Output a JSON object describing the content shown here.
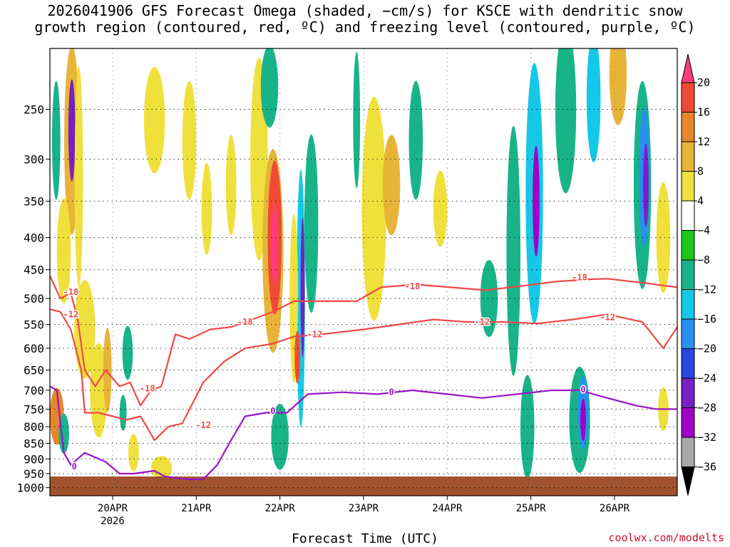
{
  "title": {
    "line1": "2026041906 GFS Forecast Omega (shaded, −cm/s) for KSCE with dendritic snow",
    "line2": "growth region (contoured, red, ºC) and freezing level (contoured, purple, ºC)"
  },
  "footer": {
    "xlabel": "Forecast Time (UTC)",
    "credit": "coolwx.com/modelts"
  },
  "chart_data": {
    "type": "heatmap",
    "xlabel": "Forecast Time (UTC)",
    "x_unit": "hours since 2026-04-19 06 UTC",
    "xlim": [
      0,
      180
    ],
    "y_unit": "pressure (hPa)",
    "ylim": [
      1030,
      200
    ],
    "y_ticks": [
      250,
      300,
      350,
      400,
      450,
      500,
      550,
      600,
      650,
      700,
      750,
      800,
      850,
      900,
      950,
      1000
    ],
    "x_ticks": [
      {
        "label": "20APR",
        "sub": "2026",
        "hour": 18
      },
      {
        "label": "21APR",
        "hour": 42
      },
      {
        "label": "22APR",
        "hour": 66
      },
      {
        "label": "23APR",
        "hour": 90
      },
      {
        "label": "24APR",
        "hour": 114
      },
      {
        "label": "25APR",
        "hour": 138
      },
      {
        "label": "26APR",
        "hour": 162
      }
    ],
    "grid": true,
    "colorbar": {
      "labels": [
        "20",
        "16",
        "12",
        "8",
        "4",
        "−4",
        "−8",
        "−12",
        "−16",
        "−20",
        "−24",
        "−28",
        "−32",
        "−36"
      ],
      "colors": [
        "#ff3c7a",
        "#f04a35",
        "#e8862a",
        "#e8b438",
        "#f0e03c",
        "#ffffff",
        "#1fc71f",
        "#18b488",
        "#14c8e8",
        "#2890f0",
        "#2846e0",
        "#7820c0",
        "#a000c8",
        "#a8a8a8",
        "#000000"
      ]
    },
    "shading_blobs": [
      {
        "x": 6.3,
        "p": 280,
        "rx": 2.2,
        "rp": 120,
        "level": 8
      },
      {
        "x": 6.3,
        "p": 270,
        "rx": 1.0,
        "rp": 50,
        "level": -24
      },
      {
        "x": 8.3,
        "p": 320,
        "rx": 1.2,
        "rp": 130,
        "level": 4
      },
      {
        "x": 1.8,
        "p": 280,
        "rx": 1.2,
        "rp": 60,
        "level": -8
      },
      {
        "x": 4.0,
        "p": 420,
        "rx": 2.0,
        "rp": 80,
        "level": 4
      },
      {
        "x": 2.0,
        "p": 770,
        "rx": 2.0,
        "rp": 80,
        "level": 12
      },
      {
        "x": 4.0,
        "p": 820,
        "rx": 1.5,
        "rp": 60,
        "level": -8
      },
      {
        "x": 10.0,
        "p": 560,
        "rx": 3.0,
        "rp": 100,
        "level": 4
      },
      {
        "x": 14.0,
        "p": 700,
        "rx": 2.5,
        "rp": 120,
        "level": 4
      },
      {
        "x": 16.5,
        "p": 650,
        "rx": 1.2,
        "rp": 100,
        "level": 8
      },
      {
        "x": 21.0,
        "p": 760,
        "rx": 1.0,
        "rp": 50,
        "level": -8
      },
      {
        "x": 22.3,
        "p": 610,
        "rx": 1.5,
        "rp": 60,
        "level": -8
      },
      {
        "x": 24.0,
        "p": 880,
        "rx": 1.5,
        "rp": 60,
        "level": 4
      },
      {
        "x": 32.0,
        "p": 930,
        "rx": 3.0,
        "rp": 40,
        "level": 4
      },
      {
        "x": 30.0,
        "p": 260,
        "rx": 3.0,
        "rp": 50,
        "level": 4
      },
      {
        "x": 40.0,
        "p": 280,
        "rx": 2.0,
        "rp": 60,
        "level": 4
      },
      {
        "x": 45.0,
        "p": 360,
        "rx": 1.5,
        "rp": 60,
        "level": 4
      },
      {
        "x": 52.0,
        "p": 330,
        "rx": 1.5,
        "rp": 60,
        "level": 4
      },
      {
        "x": 60.0,
        "p": 300,
        "rx": 2.5,
        "rp": 120,
        "level": 4
      },
      {
        "x": 64.0,
        "p": 420,
        "rx": 3.0,
        "rp": 150,
        "level": 8
      },
      {
        "x": 64.5,
        "p": 400,
        "rx": 2.0,
        "rp": 110,
        "level": 16
      },
      {
        "x": 64.5,
        "p": 410,
        "rx": 1.0,
        "rp": 60,
        "level": 20
      },
      {
        "x": 63.0,
        "p": 230,
        "rx": 2.5,
        "rp": 40,
        "level": -8
      },
      {
        "x": 72.0,
        "p": 500,
        "rx": 1.2,
        "rp": 220,
        "level": -12
      },
      {
        "x": 72.5,
        "p": 480,
        "rx": 0.6,
        "rp": 120,
        "level": -24
      },
      {
        "x": 70.0,
        "p": 500,
        "rx": 1.2,
        "rp": 150,
        "level": 4
      },
      {
        "x": 75.0,
        "p": 380,
        "rx": 2.0,
        "rp": 120,
        "level": -8
      },
      {
        "x": 66.0,
        "p": 830,
        "rx": 2.5,
        "rp": 100,
        "level": -8
      },
      {
        "x": 71.0,
        "p": 620,
        "rx": 0.8,
        "rp": 60,
        "level": 16
      },
      {
        "x": 93.0,
        "p": 360,
        "rx": 3.5,
        "rp": 140,
        "level": 4
      },
      {
        "x": 98.0,
        "p": 330,
        "rx": 2.5,
        "rp": 60,
        "level": 8
      },
      {
        "x": 88.0,
        "p": 260,
        "rx": 1.0,
        "rp": 70,
        "level": -8
      },
      {
        "x": 105.0,
        "p": 280,
        "rx": 2.0,
        "rp": 60,
        "level": -8
      },
      {
        "x": 112.0,
        "p": 360,
        "rx": 2.0,
        "rp": 50,
        "level": 4
      },
      {
        "x": 126.0,
        "p": 500,
        "rx": 2.5,
        "rp": 70,
        "level": -8
      },
      {
        "x": 133.0,
        "p": 420,
        "rx": 2.0,
        "rp": 180,
        "level": -8
      },
      {
        "x": 139.0,
        "p": 340,
        "rx": 2.5,
        "rp": 180,
        "level": -12
      },
      {
        "x": 139.5,
        "p": 350,
        "rx": 1.0,
        "rp": 70,
        "level": -28
      },
      {
        "x": 137.0,
        "p": 800,
        "rx": 2.0,
        "rp": 150,
        "level": -8
      },
      {
        "x": 152.0,
        "p": 780,
        "rx": 3.0,
        "rp": 150,
        "level": -8
      },
      {
        "x": 153.0,
        "p": 760,
        "rx": 1.5,
        "rp": 100,
        "level": -16
      },
      {
        "x": 153.0,
        "p": 780,
        "rx": 0.8,
        "rp": 60,
        "level": -28
      },
      {
        "x": 148.0,
        "p": 250,
        "rx": 3.0,
        "rp": 120,
        "level": -8
      },
      {
        "x": 156.0,
        "p": 240,
        "rx": 2.0,
        "rp": 80,
        "level": -12
      },
      {
        "x": 163.0,
        "p": 220,
        "rx": 2.5,
        "rp": 70,
        "level": 8
      },
      {
        "x": 170.0,
        "p": 330,
        "rx": 2.5,
        "rp": 120,
        "level": -8
      },
      {
        "x": 170.5,
        "p": 320,
        "rx": 1.5,
        "rp": 80,
        "level": -16
      },
      {
        "x": 171.0,
        "p": 330,
        "rx": 0.8,
        "rp": 50,
        "level": -24
      },
      {
        "x": 176.0,
        "p": 400,
        "rx": 2.0,
        "rp": 80,
        "level": 4
      },
      {
        "x": 176.0,
        "p": 750,
        "rx": 1.5,
        "rp": 60,
        "level": 4
      }
    ],
    "contours": [
      {
        "label": "-18",
        "color": "#f04848",
        "points": [
          [
            0,
            460
          ],
          [
            3,
            500
          ],
          [
            6,
            490
          ],
          [
            8,
            540
          ],
          [
            10,
            650
          ],
          [
            13,
            690
          ],
          [
            16,
            650
          ],
          [
            20,
            690
          ],
          [
            23,
            680
          ],
          [
            26,
            740
          ],
          [
            29,
            700
          ],
          [
            32,
            690
          ],
          [
            36,
            570
          ],
          [
            40,
            580
          ],
          [
            46,
            560
          ],
          [
            52,
            555
          ],
          [
            58,
            540
          ],
          [
            64,
            525
          ],
          [
            70,
            505
          ],
          [
            78,
            505
          ],
          [
            88,
            505
          ],
          [
            95,
            480
          ],
          [
            105,
            475
          ],
          [
            115,
            480
          ],
          [
            125,
            485
          ],
          [
            135,
            478
          ],
          [
            145,
            470
          ],
          [
            155,
            466
          ],
          [
            160,
            465
          ],
          [
            170,
            472
          ],
          [
            180,
            480
          ]
        ],
        "label_points": [
          [
            6,
            488
          ],
          [
            28,
            695
          ],
          [
            56,
            545
          ],
          [
            104,
            478
          ],
          [
            152,
            463
          ]
        ]
      },
      {
        "label": "-12",
        "color": "#f04848",
        "points": [
          [
            0,
            520
          ],
          [
            3,
            525
          ],
          [
            6,
            560
          ],
          [
            9,
            650
          ],
          [
            10,
            760
          ],
          [
            14,
            760
          ],
          [
            18,
            770
          ],
          [
            22,
            780
          ],
          [
            26,
            770
          ],
          [
            30,
            840
          ],
          [
            34,
            800
          ],
          [
            38,
            790
          ],
          [
            44,
            680
          ],
          [
            50,
            630
          ],
          [
            56,
            600
          ],
          [
            64,
            590
          ],
          [
            70,
            575
          ],
          [
            78,
            570
          ],
          [
            90,
            560
          ],
          [
            100,
            550
          ],
          [
            110,
            540
          ],
          [
            120,
            545
          ],
          [
            130,
            545
          ],
          [
            140,
            548
          ],
          [
            150,
            540
          ],
          [
            160,
            530
          ],
          [
            170,
            545
          ],
          [
            176,
            600
          ],
          [
            180,
            555
          ]
        ],
        "label_points": [
          [
            6,
            530
          ],
          [
            44,
            795
          ],
          [
            76,
            570
          ],
          [
            124,
            545
          ],
          [
            160,
            536
          ]
        ]
      },
      {
        "label": "0",
        "color": "#9a14c8",
        "points": [
          [
            0,
            690
          ],
          [
            2,
            700
          ],
          [
            3,
            790
          ],
          [
            4,
            880
          ],
          [
            6,
            920
          ],
          [
            10,
            880
          ],
          [
            16,
            910
          ],
          [
            20,
            950
          ],
          [
            24,
            950
          ],
          [
            30,
            940
          ],
          [
            33,
            960
          ],
          [
            36,
            965
          ],
          [
            40,
            970
          ],
          [
            44,
            970
          ],
          [
            48,
            920
          ],
          [
            52,
            840
          ],
          [
            56,
            770
          ],
          [
            62,
            760
          ],
          [
            68,
            760
          ],
          [
            74,
            710
          ],
          [
            84,
            705
          ],
          [
            94,
            710
          ],
          [
            104,
            700
          ],
          [
            114,
            710
          ],
          [
            124,
            720
          ],
          [
            134,
            710
          ],
          [
            144,
            700
          ],
          [
            152,
            700
          ],
          [
            160,
            720
          ],
          [
            168,
            740
          ],
          [
            174,
            750
          ],
          [
            180,
            750
          ]
        ],
        "label_points": [
          [
            7,
            925
          ],
          [
            64,
            755
          ],
          [
            98,
            705
          ],
          [
            153,
            698
          ]
        ]
      }
    ]
  }
}
